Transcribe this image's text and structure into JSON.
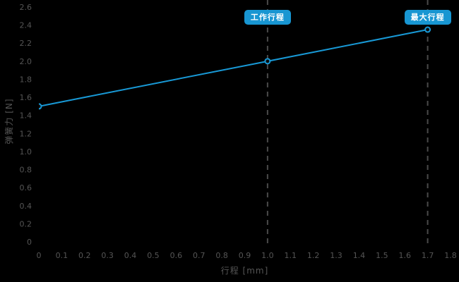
{
  "page": {
    "background": "#000000"
  },
  "chart_data": {
    "type": "line",
    "title": "",
    "xlabel": "行程 [mm]",
    "ylabel": "弹簧力 [N]",
    "xlim": [
      0,
      1.8
    ],
    "ylim": [
      0,
      2.6
    ],
    "xticks": [
      "0",
      "0.1",
      "0.2",
      "0.3",
      "0.4",
      "0.5",
      "0.6",
      "0.7",
      "0.8",
      "0.9",
      "1.0",
      "1.1",
      "1.2",
      "1.3",
      "1.4",
      "1.5",
      "1.6",
      "1.7",
      "1.8"
    ],
    "yticks": [
      "0",
      "0.2",
      "0.4",
      "0.6",
      "0.8",
      "1.0",
      "1.2",
      "1.4",
      "1.6",
      "1.8",
      "2.0",
      "2.2",
      "2.4",
      "2.6"
    ],
    "grid": false,
    "legend": false,
    "series": [
      {
        "name": "spring-force",
        "color": "#1899d6",
        "points": [
          {
            "x": 0,
            "y": 1.5
          },
          {
            "x": 1.0,
            "y": 2.0
          },
          {
            "x": 1.7,
            "y": 2.35
          }
        ]
      }
    ],
    "annotations": [
      {
        "name": "working-stroke",
        "x": 1.0,
        "label": "工作行程"
      },
      {
        "name": "max-stroke",
        "x": 1.7,
        "label": "最大行程"
      }
    ],
    "colors": {
      "reference_line": "#4a4a4a",
      "tick_text": "#555555",
      "axis_label_text": "#555555",
      "badge_bg": "#1896d2",
      "badge_text": "#ffffff",
      "marker_fill": "#0d0d0d"
    }
  }
}
